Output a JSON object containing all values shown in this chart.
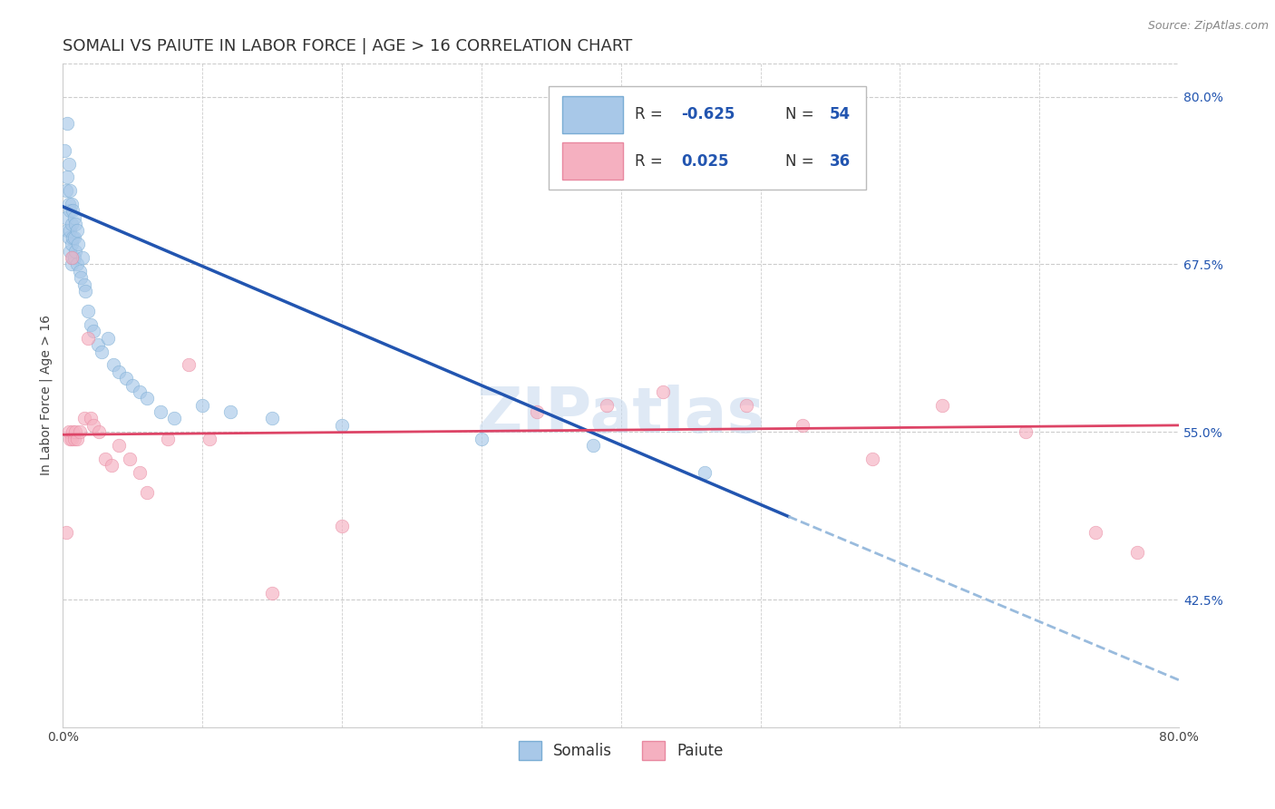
{
  "title": "SOMALI VS PAIUTE IN LABOR FORCE | AGE > 16 CORRELATION CHART",
  "source": "Source: ZipAtlas.com",
  "ylabel": "In Labor Force | Age > 16",
  "xlim": [
    0.0,
    0.8
  ],
  "ylim": [
    0.33,
    0.825
  ],
  "xticks": [
    0.0,
    0.1,
    0.2,
    0.3,
    0.4,
    0.5,
    0.6,
    0.7,
    0.8
  ],
  "xticklabels": [
    "0.0%",
    "",
    "",
    "",
    "",
    "",
    "",
    "",
    "80.0%"
  ],
  "ytick_positions": [
    0.425,
    0.55,
    0.675,
    0.8
  ],
  "ytick_labels": [
    "42.5%",
    "55.0%",
    "67.5%",
    "80.0%"
  ],
  "somali_color": "#a8c8e8",
  "paiute_color": "#f5b0c0",
  "somali_edge": "#7aadd4",
  "paiute_edge": "#e888a0",
  "trend_somali_color": "#2255b0",
  "trend_paiute_color": "#dd4466",
  "trend_somali_dash_color": "#99bbdd",
  "watermark_color": "#c5d8ee",
  "R_somali": -0.625,
  "N_somali": 54,
  "R_paiute": 0.025,
  "N_paiute": 36,
  "somali_x": [
    0.001,
    0.002,
    0.002,
    0.003,
    0.003,
    0.003,
    0.004,
    0.004,
    0.004,
    0.005,
    0.005,
    0.005,
    0.005,
    0.006,
    0.006,
    0.006,
    0.006,
    0.007,
    0.007,
    0.007,
    0.008,
    0.008,
    0.008,
    0.009,
    0.009,
    0.01,
    0.01,
    0.011,
    0.012,
    0.013,
    0.014,
    0.015,
    0.016,
    0.018,
    0.02,
    0.022,
    0.025,
    0.028,
    0.032,
    0.036,
    0.04,
    0.045,
    0.05,
    0.055,
    0.06,
    0.07,
    0.08,
    0.1,
    0.12,
    0.15,
    0.2,
    0.3,
    0.38,
    0.46
  ],
  "somali_y": [
    0.76,
    0.73,
    0.71,
    0.78,
    0.74,
    0.7,
    0.75,
    0.72,
    0.695,
    0.73,
    0.715,
    0.7,
    0.685,
    0.72,
    0.705,
    0.69,
    0.675,
    0.715,
    0.695,
    0.68,
    0.71,
    0.695,
    0.68,
    0.705,
    0.685,
    0.7,
    0.675,
    0.69,
    0.67,
    0.665,
    0.68,
    0.66,
    0.655,
    0.64,
    0.63,
    0.625,
    0.615,
    0.61,
    0.62,
    0.6,
    0.595,
    0.59,
    0.585,
    0.58,
    0.575,
    0.565,
    0.56,
    0.57,
    0.565,
    0.56,
    0.555,
    0.545,
    0.54,
    0.52
  ],
  "paiute_x": [
    0.002,
    0.004,
    0.005,
    0.006,
    0.006,
    0.007,
    0.008,
    0.009,
    0.01,
    0.012,
    0.015,
    0.018,
    0.02,
    0.022,
    0.026,
    0.03,
    0.035,
    0.04,
    0.048,
    0.055,
    0.06,
    0.075,
    0.09,
    0.105,
    0.15,
    0.2,
    0.34,
    0.39,
    0.43,
    0.49,
    0.53,
    0.58,
    0.63,
    0.69,
    0.74,
    0.77
  ],
  "paiute_y": [
    0.475,
    0.55,
    0.545,
    0.545,
    0.68,
    0.55,
    0.545,
    0.55,
    0.545,
    0.55,
    0.56,
    0.62,
    0.56,
    0.555,
    0.55,
    0.53,
    0.525,
    0.54,
    0.53,
    0.52,
    0.505,
    0.545,
    0.6,
    0.545,
    0.43,
    0.48,
    0.565,
    0.57,
    0.58,
    0.57,
    0.555,
    0.53,
    0.57,
    0.55,
    0.475,
    0.46
  ],
  "trend_somali_start_x": 0.0,
  "trend_somali_solid_end_x": 0.52,
  "trend_somali_end_x": 0.8,
  "trend_somali_start_y": 0.718,
  "trend_somali_solid_end_y": 0.487,
  "trend_somali_end_y": 0.365,
  "trend_paiute_start_x": 0.0,
  "trend_paiute_end_x": 0.8,
  "trend_paiute_start_y": 0.548,
  "trend_paiute_end_y": 0.555,
  "marker_size": 110,
  "alpha": 0.65,
  "grid_color": "#cccccc",
  "background_color": "#ffffff",
  "title_fontsize": 13,
  "axis_label_fontsize": 10,
  "tick_fontsize": 10,
  "legend_fontsize": 12,
  "source_fontsize": 9,
  "bottom_legend": [
    "Somalis",
    "Paiute"
  ],
  "bottom_legend_colors": [
    "#a8c8e8",
    "#f5b0c0"
  ],
  "bottom_legend_edge": [
    "#7aadd4",
    "#e888a0"
  ]
}
